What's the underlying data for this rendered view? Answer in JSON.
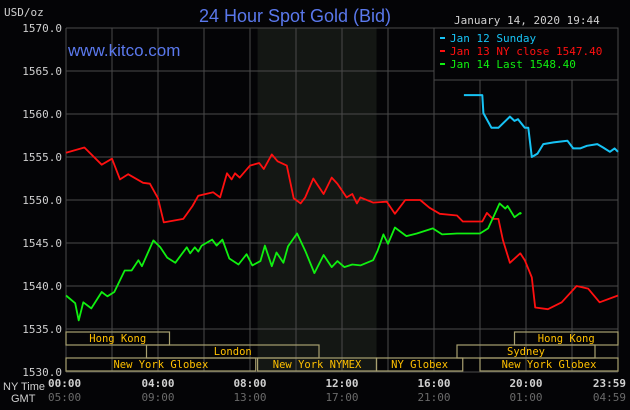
{
  "chart_data": {
    "type": "line",
    "title": "24 Hour Spot Gold (Bid)",
    "ylabel": "USD/oz",
    "timestamp": "January 14, 2020 19:44",
    "watermark": "www.kitco.com",
    "ylim": [
      1530,
      1570
    ],
    "xlim_hours": [
      0,
      24
    ],
    "grid": true,
    "legend_placement": "top-right",
    "y_ticks": [
      "1530.0",
      "1535.0",
      "1540.0",
      "1545.0",
      "1550.0",
      "1555.0",
      "1560.0",
      "1565.0",
      "1570.0"
    ],
    "x_axis": {
      "row_labels": {
        "ny": "NY Time",
        "gmt": "GMT"
      },
      "ticks": [
        {
          "hour": 0,
          "ny": "00:00",
          "gmt": "05:00"
        },
        {
          "hour": 4,
          "ny": "04:00",
          "gmt": "09:00"
        },
        {
          "hour": 8,
          "ny": "08:00",
          "gmt": "13:00"
        },
        {
          "hour": 12,
          "ny": "12:00",
          "gmt": "17:00"
        },
        {
          "hour": 16,
          "ny": "16:00",
          "gmt": "21:00"
        },
        {
          "hour": 20,
          "ny": "20:00",
          "gmt": "01:00"
        },
        {
          "hour": 24,
          "ny": "23:59",
          "gmt": "04:59"
        }
      ]
    },
    "shaded_period_hours": [
      8.33,
      13.5
    ],
    "sessions": [
      {
        "label": "Hong Kong",
        "row": 0,
        "start": 0,
        "end": 4.5
      },
      {
        "label": "Hong Kong",
        "row": 0,
        "start": 19.5,
        "end": 24
      },
      {
        "label": "London",
        "row": 1,
        "start": 3.5,
        "end": 11
      },
      {
        "label": "Sydney",
        "row": 1,
        "start": 17,
        "end": 23
      },
      {
        "label": "New York Globex",
        "row": 2,
        "start": 0,
        "end": 8.25
      },
      {
        "label": "New York NYMEX",
        "row": 2,
        "start": 8.33,
        "end": 13.5
      },
      {
        "label": "NY Globex",
        "row": 2,
        "start": 13.5,
        "end": 17.25
      },
      {
        "label": "New York Globex",
        "row": 2,
        "start": 18,
        "end": 24
      }
    ],
    "series": [
      {
        "name": "Jan 12 Sunday",
        "color": "#17c3f5",
        "points": [
          [
            17.3,
            1562.2
          ],
          [
            18.1,
            1562.2
          ],
          [
            18.15,
            1560.1
          ],
          [
            18.5,
            1558.4
          ],
          [
            18.8,
            1558.4
          ],
          [
            19.3,
            1559.7
          ],
          [
            19.5,
            1559.2
          ],
          [
            19.65,
            1559.4
          ],
          [
            19.95,
            1558.4
          ],
          [
            20.1,
            1558.4
          ],
          [
            20.25,
            1555.0
          ],
          [
            20.5,
            1555.4
          ],
          [
            20.75,
            1556.5
          ],
          [
            21.2,
            1556.7
          ],
          [
            21.8,
            1556.9
          ],
          [
            22.05,
            1556.0
          ],
          [
            22.35,
            1556.0
          ],
          [
            22.65,
            1556.3
          ],
          [
            23.1,
            1556.5
          ],
          [
            23.35,
            1556.1
          ],
          [
            23.65,
            1555.6
          ],
          [
            23.85,
            1556.0
          ],
          [
            24,
            1555.6
          ]
        ]
      },
      {
        "name": "Jan 13 NY close 1547.40",
        "color": "#ff1010",
        "points": [
          [
            0,
            1555.5
          ],
          [
            0.8,
            1556.1
          ],
          [
            1.55,
            1554.1
          ],
          [
            2,
            1554.8
          ],
          [
            2.35,
            1552.4
          ],
          [
            2.7,
            1553.0
          ],
          [
            3.35,
            1552.0
          ],
          [
            3.65,
            1551.9
          ],
          [
            4,
            1550.2
          ],
          [
            4.25,
            1547.4
          ],
          [
            5.1,
            1547.8
          ],
          [
            5.5,
            1549.3
          ],
          [
            5.75,
            1550.5
          ],
          [
            6.4,
            1550.9
          ],
          [
            6.7,
            1550.3
          ],
          [
            7.0,
            1553.1
          ],
          [
            7.2,
            1552.4
          ],
          [
            7.35,
            1553.1
          ],
          [
            7.55,
            1552.6
          ],
          [
            8.0,
            1554.0
          ],
          [
            8.4,
            1554.3
          ],
          [
            8.6,
            1553.6
          ],
          [
            8.95,
            1555.3
          ],
          [
            9.2,
            1554.5
          ],
          [
            9.6,
            1554.0
          ],
          [
            9.9,
            1550.2
          ],
          [
            10.2,
            1549.6
          ],
          [
            10.4,
            1550.3
          ],
          [
            10.75,
            1552.5
          ],
          [
            11.2,
            1550.7
          ],
          [
            11.55,
            1552.6
          ],
          [
            11.8,
            1551.9
          ],
          [
            12.2,
            1550.3
          ],
          [
            12.45,
            1550.7
          ],
          [
            12.65,
            1549.6
          ],
          [
            12.8,
            1550.3
          ],
          [
            13.35,
            1549.7
          ],
          [
            13.95,
            1549.8
          ],
          [
            14.3,
            1548.4
          ],
          [
            14.75,
            1550.0
          ],
          [
            15.4,
            1550.0
          ],
          [
            15.8,
            1549.1
          ],
          [
            16.25,
            1548.4
          ],
          [
            17.0,
            1548.2
          ],
          [
            17.25,
            1547.5
          ],
          [
            18.1,
            1547.5
          ],
          [
            18.3,
            1548.5
          ],
          [
            18.55,
            1547.8
          ],
          [
            18.8,
            1547.8
          ],
          [
            19.0,
            1545.3
          ],
          [
            19.3,
            1542.7
          ],
          [
            19.75,
            1543.8
          ],
          [
            19.95,
            1543.0
          ],
          [
            20.25,
            1541.0
          ],
          [
            20.4,
            1537.5
          ],
          [
            20.95,
            1537.3
          ],
          [
            21.55,
            1538.1
          ],
          [
            22.2,
            1540.0
          ],
          [
            22.7,
            1539.7
          ],
          [
            23.2,
            1538.1
          ],
          [
            24,
            1538.9
          ]
        ]
      },
      {
        "name": "Jan 14 Last 1548.40",
        "color": "#10f010",
        "points": [
          [
            0,
            1538.9
          ],
          [
            0.4,
            1538.0
          ],
          [
            0.55,
            1536.0
          ],
          [
            0.75,
            1538.1
          ],
          [
            1.1,
            1537.4
          ],
          [
            1.55,
            1539.3
          ],
          [
            1.8,
            1538.8
          ],
          [
            2.1,
            1539.3
          ],
          [
            2.55,
            1541.8
          ],
          [
            2.85,
            1541.8
          ],
          [
            3.15,
            1543.0
          ],
          [
            3.3,
            1542.3
          ],
          [
            3.8,
            1545.3
          ],
          [
            4.1,
            1544.5
          ],
          [
            4.4,
            1543.3
          ],
          [
            4.75,
            1542.7
          ],
          [
            5.25,
            1544.5
          ],
          [
            5.4,
            1543.8
          ],
          [
            5.6,
            1544.5
          ],
          [
            5.75,
            1544.0
          ],
          [
            5.9,
            1544.7
          ],
          [
            6.35,
            1545.4
          ],
          [
            6.55,
            1544.7
          ],
          [
            6.8,
            1545.4
          ],
          [
            7.1,
            1543.2
          ],
          [
            7.5,
            1542.5
          ],
          [
            7.85,
            1543.7
          ],
          [
            8.1,
            1542.4
          ],
          [
            8.45,
            1542.9
          ],
          [
            8.65,
            1544.7
          ],
          [
            8.95,
            1542.3
          ],
          [
            9.15,
            1543.9
          ],
          [
            9.45,
            1542.7
          ],
          [
            9.65,
            1544.6
          ],
          [
            10.05,
            1546.1
          ],
          [
            10.4,
            1544.1
          ],
          [
            10.8,
            1541.5
          ],
          [
            11.2,
            1543.6
          ],
          [
            11.55,
            1542.2
          ],
          [
            11.8,
            1542.9
          ],
          [
            12.1,
            1542.2
          ],
          [
            12.45,
            1542.5
          ],
          [
            12.8,
            1542.4
          ],
          [
            13.35,
            1543.0
          ],
          [
            13.55,
            1544.1
          ],
          [
            13.8,
            1546.0
          ],
          [
            14.0,
            1544.9
          ],
          [
            14.3,
            1546.8
          ],
          [
            14.8,
            1545.8
          ],
          [
            15.25,
            1546.1
          ],
          [
            15.95,
            1546.7
          ],
          [
            16.35,
            1546.0
          ],
          [
            17.0,
            1546.1
          ],
          [
            18.0,
            1546.1
          ],
          [
            18.35,
            1546.7
          ],
          [
            18.65,
            1548.4
          ],
          [
            18.85,
            1549.6
          ],
          [
            19.1,
            1549.0
          ],
          [
            19.2,
            1549.3
          ],
          [
            19.5,
            1548.0
          ],
          [
            19.75,
            1548.5
          ],
          [
            19.8,
            1548.4
          ]
        ]
      }
    ],
    "colors": {
      "background": "#040406",
      "grid": "#4a4a4a",
      "title": "#5a78ec",
      "axis_text": "#d0d0d0",
      "gmt_text": "#6a6a6a",
      "session_text": "#ffc000",
      "session_border": "#a8a070",
      "shaded": "#141714"
    }
  }
}
